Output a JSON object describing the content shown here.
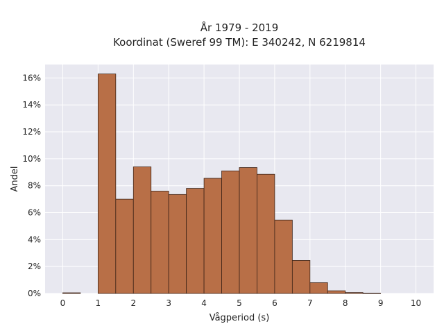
{
  "chart_data": {
    "type": "bar",
    "title": "År 1979 - 2019",
    "subtitle": "Koordinat (Sweref 99 TM): E 340242, N 6219814",
    "xlabel": "Vågperiod (s)",
    "ylabel": "Andel",
    "bin_width": 0.5,
    "bins": [
      {
        "x": 0.0,
        "value": 0.05
      },
      {
        "x": 0.5,
        "value": 0.0
      },
      {
        "x": 1.0,
        "value": 16.3
      },
      {
        "x": 1.5,
        "value": 7.0
      },
      {
        "x": 2.0,
        "value": 9.4
      },
      {
        "x": 2.5,
        "value": 7.6
      },
      {
        "x": 3.0,
        "value": 7.35
      },
      {
        "x": 3.5,
        "value": 7.8
      },
      {
        "x": 4.0,
        "value": 8.55
      },
      {
        "x": 4.5,
        "value": 9.1
      },
      {
        "x": 5.0,
        "value": 9.35
      },
      {
        "x": 5.5,
        "value": 8.85
      },
      {
        "x": 6.0,
        "value": 5.45
      },
      {
        "x": 6.5,
        "value": 2.45
      },
      {
        "x": 7.0,
        "value": 0.8
      },
      {
        "x": 7.5,
        "value": 0.2
      },
      {
        "x": 8.0,
        "value": 0.07
      },
      {
        "x": 8.5,
        "value": 0.02
      }
    ],
    "xlim": [
      -0.5,
      10.5
    ],
    "ylim": [
      0,
      17
    ],
    "xticks": [
      0,
      1,
      2,
      3,
      4,
      5,
      6,
      7,
      8,
      9,
      10
    ],
    "yticks": [
      0,
      2,
      4,
      6,
      8,
      10,
      12,
      14,
      16
    ],
    "ytick_suffix": "%",
    "grid": true,
    "colors": {
      "bar_fill": "#b86f47",
      "bar_stroke": "#3d2418",
      "plot_bg": "#e8e8f0",
      "grid": "#ffffff"
    }
  }
}
